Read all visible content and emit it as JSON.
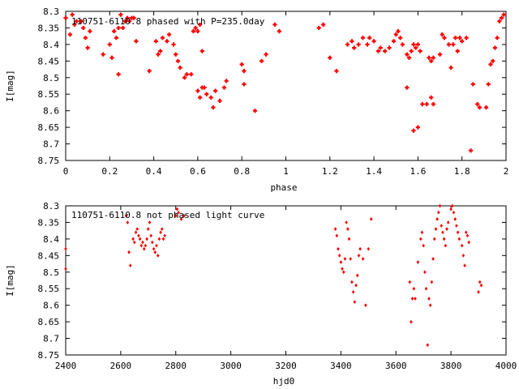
{
  "chart_data": [
    {
      "type": "scatter",
      "title": "110751-6110.8 phased with P=235.0day",
      "xlabel": "phase",
      "ylabel": "I[mag]",
      "xlim": [
        0,
        2
      ],
      "ylim": [
        8.75,
        8.3
      ],
      "y_reversed": true,
      "xticks": [
        "0",
        "0.2",
        "0.4",
        "0.6",
        "0.8",
        "1",
        "1.2",
        "1.4",
        "1.6",
        "1.8",
        "2"
      ],
      "yticks": [
        "8.3",
        "8.35",
        "8.4",
        "8.45",
        "8.5",
        "8.55",
        "8.6",
        "8.65",
        "8.7",
        "8.75"
      ],
      "marker_color": "#ff0000",
      "points": [
        [
          0.0,
          8.32
        ],
        [
          0.02,
          8.37
        ],
        [
          0.03,
          8.31
        ],
        [
          0.04,
          8.34
        ],
        [
          0.05,
          8.33
        ],
        [
          0.07,
          8.33
        ],
        [
          0.08,
          8.35
        ],
        [
          0.09,
          8.38
        ],
        [
          0.1,
          8.41
        ],
        [
          0.11,
          8.36
        ],
        [
          0.17,
          8.43
        ],
        [
          0.2,
          8.4
        ],
        [
          0.21,
          8.44
        ],
        [
          0.22,
          8.36
        ],
        [
          0.23,
          8.38
        ],
        [
          0.24,
          8.35
        ],
        [
          0.25,
          8.31
        ],
        [
          0.26,
          8.35
        ],
        [
          0.27,
          8.33
        ],
        [
          0.28,
          8.32
        ],
        [
          0.29,
          8.33
        ],
        [
          0.3,
          8.32
        ],
        [
          0.31,
          8.32
        ],
        [
          0.24,
          8.49
        ],
        [
          0.32,
          8.39
        ],
        [
          0.38,
          8.48
        ],
        [
          0.41,
          8.39
        ],
        [
          0.42,
          8.43
        ],
        [
          0.43,
          8.42
        ],
        [
          0.44,
          8.38
        ],
        [
          0.46,
          8.39
        ],
        [
          0.47,
          8.37
        ],
        [
          0.49,
          8.4
        ],
        [
          0.5,
          8.43
        ],
        [
          0.51,
          8.45
        ],
        [
          0.52,
          8.47
        ],
        [
          0.54,
          8.5
        ],
        [
          0.55,
          8.49
        ],
        [
          0.57,
          8.49
        ],
        [
          0.58,
          8.36
        ],
        [
          0.59,
          8.35
        ],
        [
          0.6,
          8.36
        ],
        [
          0.61,
          8.34
        ],
        [
          0.62,
          8.42
        ],
        [
          0.6,
          8.54
        ],
        [
          0.61,
          8.56
        ],
        [
          0.62,
          8.53
        ],
        [
          0.63,
          8.53
        ],
        [
          0.64,
          8.55
        ],
        [
          0.66,
          8.56
        ],
        [
          0.67,
          8.59
        ],
        [
          0.68,
          8.54
        ],
        [
          0.7,
          8.57
        ],
        [
          0.72,
          8.53
        ],
        [
          0.73,
          8.51
        ],
        [
          0.8,
          8.46
        ],
        [
          0.81,
          8.48
        ],
        [
          0.81,
          8.52
        ],
        [
          0.86,
          8.6
        ],
        [
          0.89,
          8.45
        ],
        [
          0.91,
          8.43
        ],
        [
          0.95,
          8.34
        ],
        [
          0.97,
          8.36
        ],
        [
          1.15,
          8.35
        ],
        [
          1.17,
          8.34
        ],
        [
          1.2,
          8.44
        ],
        [
          1.23,
          8.48
        ],
        [
          1.28,
          8.4
        ],
        [
          1.3,
          8.39
        ],
        [
          1.31,
          8.41
        ],
        [
          1.33,
          8.4
        ],
        [
          1.35,
          8.38
        ],
        [
          1.37,
          8.4
        ],
        [
          1.38,
          8.38
        ],
        [
          1.4,
          8.39
        ],
        [
          1.42,
          8.42
        ],
        [
          1.43,
          8.41
        ],
        [
          1.45,
          8.42
        ],
        [
          1.47,
          8.41
        ],
        [
          1.49,
          8.39
        ],
        [
          1.5,
          8.37
        ],
        [
          1.51,
          8.36
        ],
        [
          1.52,
          8.38
        ],
        [
          1.53,
          8.4
        ],
        [
          1.55,
          8.43
        ],
        [
          1.55,
          8.53
        ],
        [
          1.56,
          8.44
        ],
        [
          1.57,
          8.42
        ],
        [
          1.58,
          8.4
        ],
        [
          1.59,
          8.41
        ],
        [
          1.6,
          8.4
        ],
        [
          1.61,
          8.42
        ],
        [
          1.58,
          8.66
        ],
        [
          1.6,
          8.65
        ],
        [
          1.62,
          8.58
        ],
        [
          1.64,
          8.58
        ],
        [
          1.65,
          8.44
        ],
        [
          1.66,
          8.45
        ],
        [
          1.67,
          8.44
        ],
        [
          1.66,
          8.56
        ],
        [
          1.67,
          8.58
        ],
        [
          1.7,
          8.43
        ],
        [
          1.71,
          8.37
        ],
        [
          1.72,
          8.38
        ],
        [
          1.74,
          8.4
        ],
        [
          1.75,
          8.47
        ],
        [
          1.76,
          8.4
        ],
        [
          1.77,
          8.38
        ],
        [
          1.78,
          8.42
        ],
        [
          1.79,
          8.38
        ],
        [
          1.8,
          8.39
        ],
        [
          1.82,
          8.38
        ],
        [
          1.84,
          8.72
        ],
        [
          1.85,
          8.52
        ],
        [
          1.87,
          8.58
        ],
        [
          1.88,
          8.59
        ],
        [
          1.91,
          8.59
        ],
        [
          1.92,
          8.52
        ],
        [
          1.93,
          8.46
        ],
        [
          1.94,
          8.45
        ],
        [
          1.95,
          8.41
        ],
        [
          1.96,
          8.38
        ],
        [
          1.97,
          8.33
        ],
        [
          1.98,
          8.32
        ],
        [
          1.99,
          8.31
        ]
      ]
    },
    {
      "type": "scatter",
      "title": "110751-6110.8 not phased light curve",
      "xlabel": "hjd0",
      "ylabel": "I[mag]",
      "xlim": [
        2400,
        4000
      ],
      "ylim": [
        8.75,
        8.3
      ],
      "y_reversed": true,
      "xticks": [
        "2400",
        "2600",
        "2800",
        "3000",
        "3200",
        "3400",
        "3600",
        "3800",
        "4000"
      ],
      "yticks": [
        "8.3",
        "8.35",
        "8.4",
        "8.45",
        "8.5",
        "8.55",
        "8.6",
        "8.65",
        "8.7",
        "8.75"
      ],
      "marker_color": "#ff0000",
      "points": [
        [
          2400,
          8.43
        ],
        [
          2400,
          8.49
        ],
        [
          2620,
          8.33
        ],
        [
          2625,
          8.35
        ],
        [
          2630,
          8.44
        ],
        [
          2635,
          8.48
        ],
        [
          2645,
          8.4
        ],
        [
          2650,
          8.41
        ],
        [
          2655,
          8.38
        ],
        [
          2660,
          8.37
        ],
        [
          2665,
          8.39
        ],
        [
          2670,
          8.4
        ],
        [
          2675,
          8.42
        ],
        [
          2680,
          8.41
        ],
        [
          2685,
          8.43
        ],
        [
          2690,
          8.42
        ],
        [
          2695,
          8.4
        ],
        [
          2700,
          8.37
        ],
        [
          2705,
          8.35
        ],
        [
          2710,
          8.39
        ],
        [
          2715,
          8.41
        ],
        [
          2720,
          8.43
        ],
        [
          2725,
          8.44
        ],
        [
          2730,
          8.42
        ],
        [
          2735,
          8.45
        ],
        [
          2740,
          8.4
        ],
        [
          2745,
          8.38
        ],
        [
          2750,
          8.37
        ],
        [
          2755,
          8.4
        ],
        [
          2760,
          8.39
        ],
        [
          2800,
          8.33
        ],
        [
          2805,
          8.31
        ],
        [
          2810,
          8.32
        ],
        [
          2820,
          8.34
        ],
        [
          2830,
          8.33
        ],
        [
          3380,
          8.37
        ],
        [
          3385,
          8.39
        ],
        [
          3390,
          8.43
        ],
        [
          3395,
          8.45
        ],
        [
          3400,
          8.47
        ],
        [
          3405,
          8.49
        ],
        [
          3410,
          8.5
        ],
        [
          3415,
          8.46
        ],
        [
          3420,
          8.35
        ],
        [
          3425,
          8.37
        ],
        [
          3430,
          8.4
        ],
        [
          3435,
          8.46
        ],
        [
          3440,
          8.53
        ],
        [
          3445,
          8.56
        ],
        [
          3450,
          8.59
        ],
        [
          3455,
          8.54
        ],
        [
          3460,
          8.51
        ],
        [
          3465,
          8.45
        ],
        [
          3470,
          8.43
        ],
        [
          3480,
          8.46
        ],
        [
          3490,
          8.6
        ],
        [
          3500,
          8.43
        ],
        [
          3510,
          8.34
        ],
        [
          3650,
          8.53
        ],
        [
          3655,
          8.65
        ],
        [
          3660,
          8.58
        ],
        [
          3665,
          8.55
        ],
        [
          3670,
          8.58
        ],
        [
          3680,
          8.47
        ],
        [
          3690,
          8.4
        ],
        [
          3695,
          8.38
        ],
        [
          3700,
          8.42
        ],
        [
          3705,
          8.5
        ],
        [
          3710,
          8.55
        ],
        [
          3715,
          8.72
        ],
        [
          3720,
          8.58
        ],
        [
          3725,
          8.6
        ],
        [
          3730,
          8.53
        ],
        [
          3735,
          8.46
        ],
        [
          3740,
          8.4
        ],
        [
          3745,
          8.37
        ],
        [
          3750,
          8.34
        ],
        [
          3755,
          8.32
        ],
        [
          3760,
          8.3
        ],
        [
          3765,
          8.36
        ],
        [
          3770,
          8.38
        ],
        [
          3775,
          8.4
        ],
        [
          3780,
          8.42
        ],
        [
          3785,
          8.37
        ],
        [
          3790,
          8.35
        ],
        [
          3800,
          8.31
        ],
        [
          3805,
          8.3
        ],
        [
          3810,
          8.32
        ],
        [
          3815,
          8.34
        ],
        [
          3820,
          8.36
        ],
        [
          3825,
          8.38
        ],
        [
          3830,
          8.4
        ],
        [
          3840,
          8.42
        ],
        [
          3845,
          8.45
        ],
        [
          3850,
          8.48
        ],
        [
          3855,
          8.38
        ],
        [
          3860,
          8.39
        ],
        [
          3865,
          8.41
        ],
        [
          3900,
          8.56
        ],
        [
          3905,
          8.53
        ],
        [
          3910,
          8.54
        ]
      ]
    }
  ]
}
